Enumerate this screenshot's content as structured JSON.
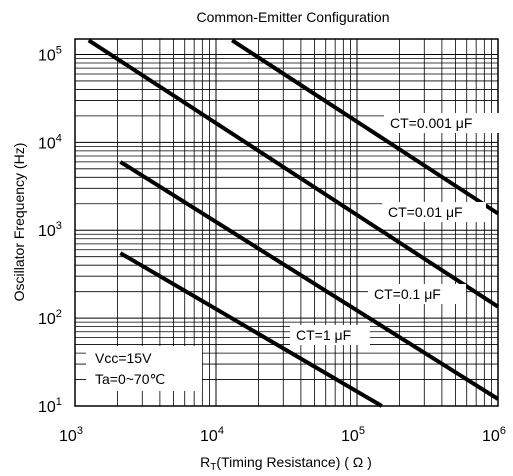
{
  "chart_data": {
    "type": "line",
    "title": "Common-Emitter Configuration",
    "xlabel": "RT(Timing Resistance) (Ω)",
    "xlabel_main": "R",
    "xlabel_sub": "T",
    "xlabel_rest": "(Timing Resistance) ( Ω )",
    "ylabel": "Oscillator Frequency  (Hz)",
    "x_scale": "log",
    "y_scale": "log",
    "xlim": [
      1000,
      1000000
    ],
    "ylim": [
      10,
      150000
    ],
    "x_ticks": [
      {
        "value": 1000,
        "base": "10",
        "exp": "3"
      },
      {
        "value": 10000,
        "base": "10",
        "exp": "4"
      },
      {
        "value": 100000,
        "base": "10",
        "exp": "5"
      },
      {
        "value": 1000000,
        "base": "10",
        "exp": "6"
      }
    ],
    "y_ticks": [
      {
        "value": 10,
        "base": "10",
        "exp": "1"
      },
      {
        "value": 100,
        "base": "10",
        "exp": "2"
      },
      {
        "value": 1000,
        "base": "10",
        "exp": "3"
      },
      {
        "value": 10000,
        "base": "10",
        "exp": "4"
      },
      {
        "value": 100000,
        "base": "10",
        "exp": "5"
      }
    ],
    "grid": true,
    "series": [
      {
        "name": "CT=0.001 μF",
        "label": "CT=0.001 μF",
        "x": [
          13000,
          1000000
        ],
        "y": [
          145000,
          1550
        ]
      },
      {
        "name": "CT=0.01 μF",
        "label": "CT=0.01 μF",
        "x": [
          1250,
          1000000
        ],
        "y": [
          145000,
          135
        ]
      },
      {
        "name": "CT=0.1 μF",
        "label": "CT=0.1 μF",
        "x": [
          2100,
          1000000
        ],
        "y": [
          6000,
          12
        ]
      },
      {
        "name": "CT=1 μF",
        "label": "CT=1 μF",
        "x": [
          2100,
          150000
        ],
        "y": [
          550,
          10
        ]
      }
    ],
    "annotations": [
      "Vcc=15V",
      "Ta=0~70℃"
    ]
  }
}
